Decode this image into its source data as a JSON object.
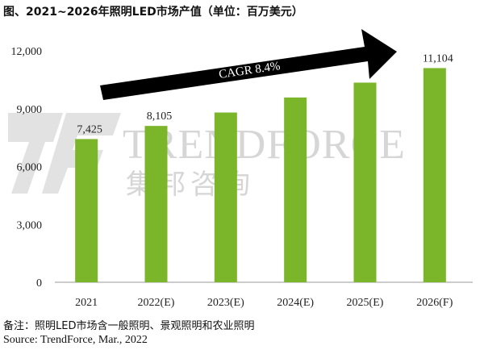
{
  "title": "图、2021~2026年照明LED市场产值（单位：百万美元）",
  "watermark": {
    "brand": "TRENDFORCE",
    "chinese": "集邦咨询"
  },
  "cagr_label": "CAGR 8.4%",
  "footnote": "备注：照明LED市场含一般照明、景观照明和农业照明",
  "source": "Source: TrendForce, Mar., 2022",
  "colors": {
    "bar": "#7ab52a",
    "arrow": "#000000",
    "axis": "#9a9a9a",
    "watermark": "#d6d6d6"
  },
  "chart_data": {
    "type": "bar",
    "categories": [
      "2021",
      "2022(E)",
      "2023(E)",
      "2024(E)",
      "2025(E)",
      "2026(F)"
    ],
    "values": [
      7425,
      8105,
      8800,
      9580,
      10350,
      11104
    ],
    "data_labels": [
      "7,425",
      "8,105",
      "",
      "",
      "",
      "11,104"
    ],
    "yticks": [
      "0",
      "3,000",
      "6,000",
      "9,000",
      "12,000"
    ],
    "ytick_values": [
      0,
      3000,
      6000,
      9000,
      12000
    ],
    "ylim": [
      0,
      12000
    ],
    "xlabel": "",
    "ylabel": "",
    "grid": false
  }
}
